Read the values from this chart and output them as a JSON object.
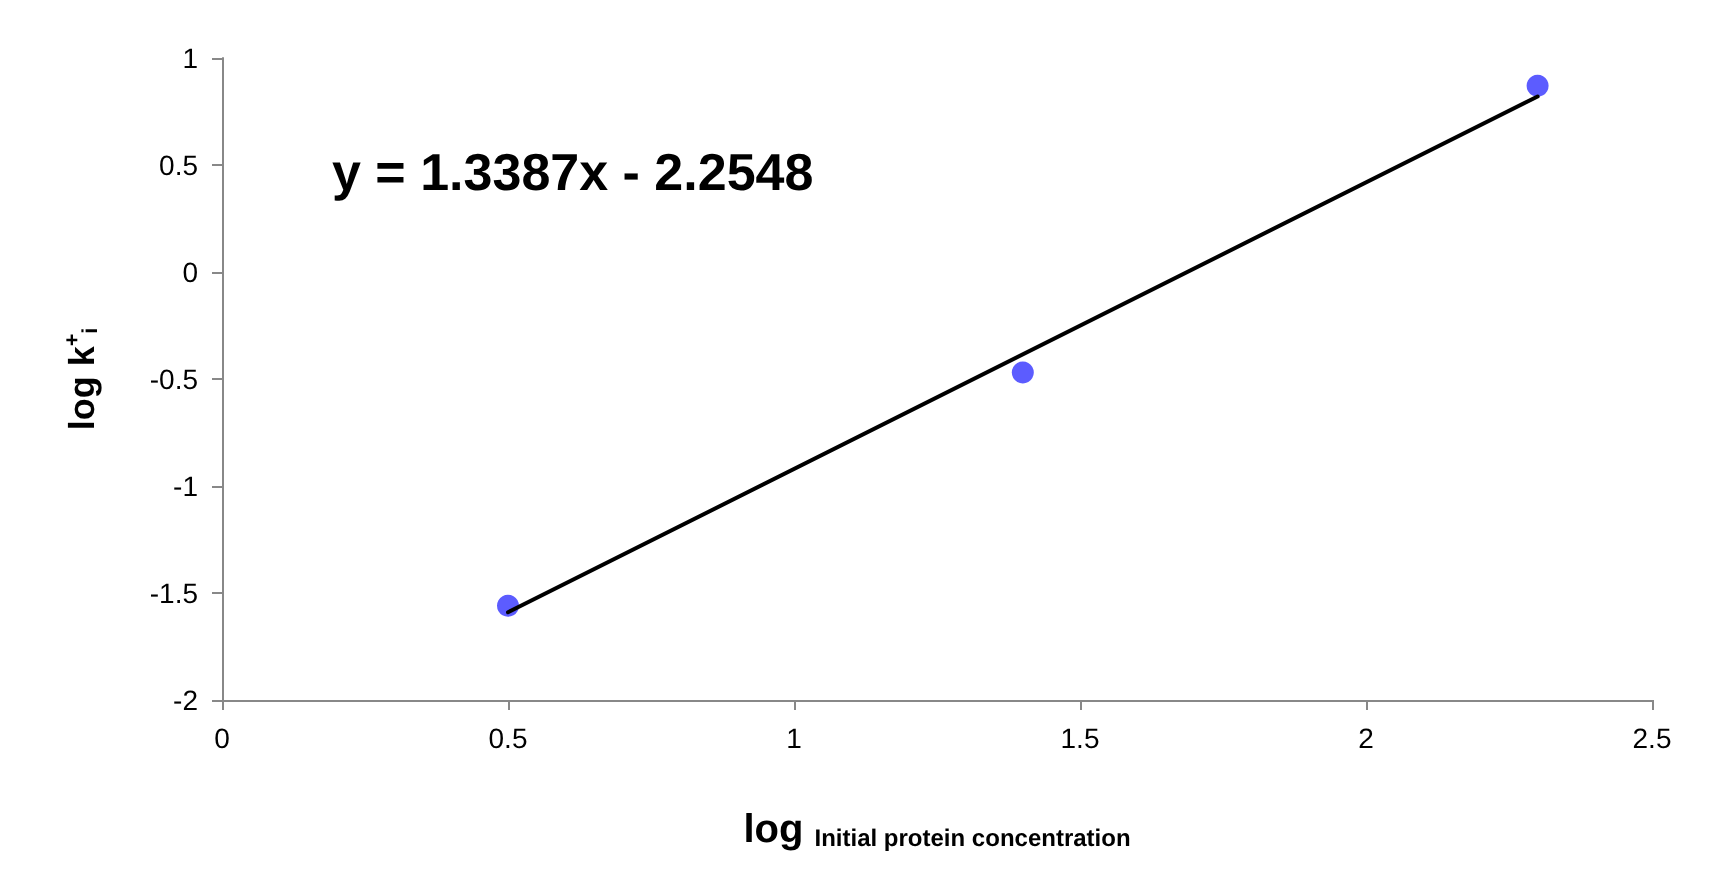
{
  "chart_data": {
    "type": "scatter",
    "xlabel": "log $_{Initial protein concentration}$",
    "ylabel": "log k$^{+}$$_{i}$",
    "xlim": [
      0,
      2.5
    ],
    "xticks": [
      0,
      0.5,
      1,
      1.5,
      2,
      2.5
    ],
    "ylim": [
      -2,
      1
    ],
    "yticks": [
      -2,
      -1.5,
      -1,
      -0.5,
      0,
      0.5,
      1
    ],
    "grid": false,
    "marker": "circle",
    "annotations": [
      "y = 1.3387x - 2.2548"
    ],
    "series": [
      {
        "color": "#3333ff",
        "x": [
          0.5,
          1.4,
          2.3
        ],
        "values": [
          -1.56,
          -0.47,
          0.87
        ]
      },
      {
        "type": "line",
        "color": "#000000",
        "x": [
          0.5,
          2.3
        ],
        "values": [
          -1.59,
          0.82
        ],
        "marker": "none",
        "line_style": "solid"
      }
    ]
  }
}
